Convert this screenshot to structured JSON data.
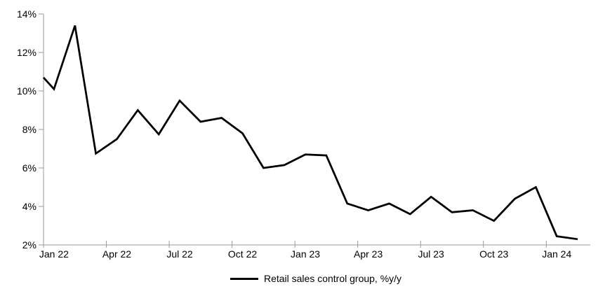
{
  "page": {
    "background": "#ffffff"
  },
  "chart_data": {
    "type": "line",
    "title": "",
    "legend": "Retail sales control group, %y/y",
    "legend_position": "bottom-center",
    "categories": [
      "Jan 22",
      "Feb 22",
      "Mar 22",
      "Apr 22",
      "May 22",
      "Jun 22",
      "Jul 22",
      "Aug 22",
      "Sep 22",
      "Oct 22",
      "Nov 22",
      "Dec 22",
      "Jan 23",
      "Feb 23",
      "Mar 23",
      "Apr 23",
      "May 23",
      "Jun 23",
      "Jul 23",
      "Aug 23",
      "Sep 23",
      "Oct 23",
      "Nov 23",
      "Dec 23",
      "Jan 24",
      "Feb 24"
    ],
    "values": [
      10.1,
      13.4,
      6.75,
      7.5,
      9.0,
      7.75,
      9.5,
      8.4,
      8.6,
      7.8,
      6.0,
      6.15,
      6.7,
      6.65,
      4.15,
      3.8,
      4.15,
      3.6,
      4.5,
      3.7,
      3.8,
      3.25,
      4.4,
      5.0,
      2.45,
      2.3
    ],
    "left_edge_value": 10.7,
    "ylim": [
      2,
      14
    ],
    "y_tick_step": 2,
    "y_tick_labels": [
      "2%",
      "4%",
      "6%",
      "8%",
      "10%",
      "12%",
      "14%"
    ],
    "x_tick_labels": [
      "Jan 22",
      "Apr 22",
      "Jul 22",
      "Oct 22",
      "Jan 23",
      "Apr 23",
      "Jul 23",
      "Oct 23",
      "Jan 24"
    ],
    "x_tick_interval_months": 3,
    "grid": "off",
    "line_color": "#000000",
    "line_width": 2.75,
    "axis_color": "#999999",
    "text_color": "#000000"
  }
}
